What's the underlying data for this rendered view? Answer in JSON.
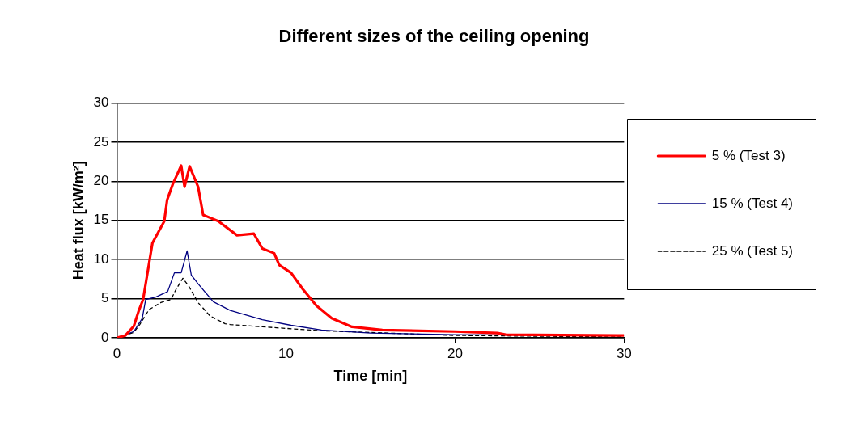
{
  "chart_data": {
    "type": "line",
    "title": "Different sizes of the ceiling opening",
    "xlabel": "Time [min]",
    "ylabel": "Heat flux [kW/m²]",
    "xlim": [
      0,
      30
    ],
    "xticks": [
      0,
      10,
      20,
      30
    ],
    "ylim": [
      0,
      30
    ],
    "yticks": [
      0,
      5,
      10,
      15,
      20,
      25,
      30
    ],
    "grid": "y",
    "legend": "right",
    "marker": "none",
    "series": [
      {
        "name": "5 % (Test 3)",
        "color": "#ff0000",
        "x": [
          0,
          0.5,
          1,
          1.3,
          1.55,
          2.1,
          2.8,
          2.97,
          3.3,
          3.8,
          4.0,
          4.3,
          4.8,
          5.1,
          6.0,
          7.1,
          8.1,
          8.6,
          9.3,
          9.6,
          10.3,
          11.0,
          11.8,
          12.7,
          13.9,
          15.7,
          20,
          22.5,
          23,
          30
        ],
        "values": [
          0,
          0.3,
          1.5,
          3.5,
          4.9,
          12.1,
          14.9,
          17.6,
          19.6,
          22,
          19.3,
          21.9,
          19.3,
          15.7,
          14.9,
          13.1,
          13.3,
          11.4,
          10.8,
          9.3,
          8.3,
          6.2,
          4.1,
          2.5,
          1.4,
          1.0,
          0.8,
          0.6,
          0.4,
          0.3
        ]
      },
      {
        "name": "15 % (Test 4)",
        "color": "#000080",
        "x": [
          0,
          1,
          1.5,
          1.7,
          2.3,
          3.0,
          3.4,
          3.8,
          4.15,
          4.4,
          4.8,
          5.7,
          6.7,
          8.6,
          10.3,
          12.1,
          15,
          20,
          30
        ],
        "values": [
          0,
          0.8,
          2.5,
          4.9,
          5.2,
          5.9,
          8.3,
          8.3,
          11.1,
          8,
          6.9,
          4.6,
          3.5,
          2.3,
          1.6,
          1.0,
          0.6,
          0.4,
          0.3
        ]
      },
      {
        "name": "25 % (Test 5)",
        "color": "#000000",
        "line_style": "dashed",
        "x": [
          0,
          1,
          1.35,
          1.9,
          2.6,
          3.2,
          3.5,
          3.9,
          4.25,
          4.8,
          5.5,
          6.4,
          6.7,
          8.6,
          12.1,
          20,
          30
        ],
        "values": [
          0,
          0.7,
          1.7,
          3.6,
          4.5,
          4.9,
          6.2,
          7.6,
          6.6,
          4.5,
          2.8,
          1.8,
          1.7,
          1.4,
          0.9,
          0.3,
          0.1
        ]
      }
    ]
  }
}
